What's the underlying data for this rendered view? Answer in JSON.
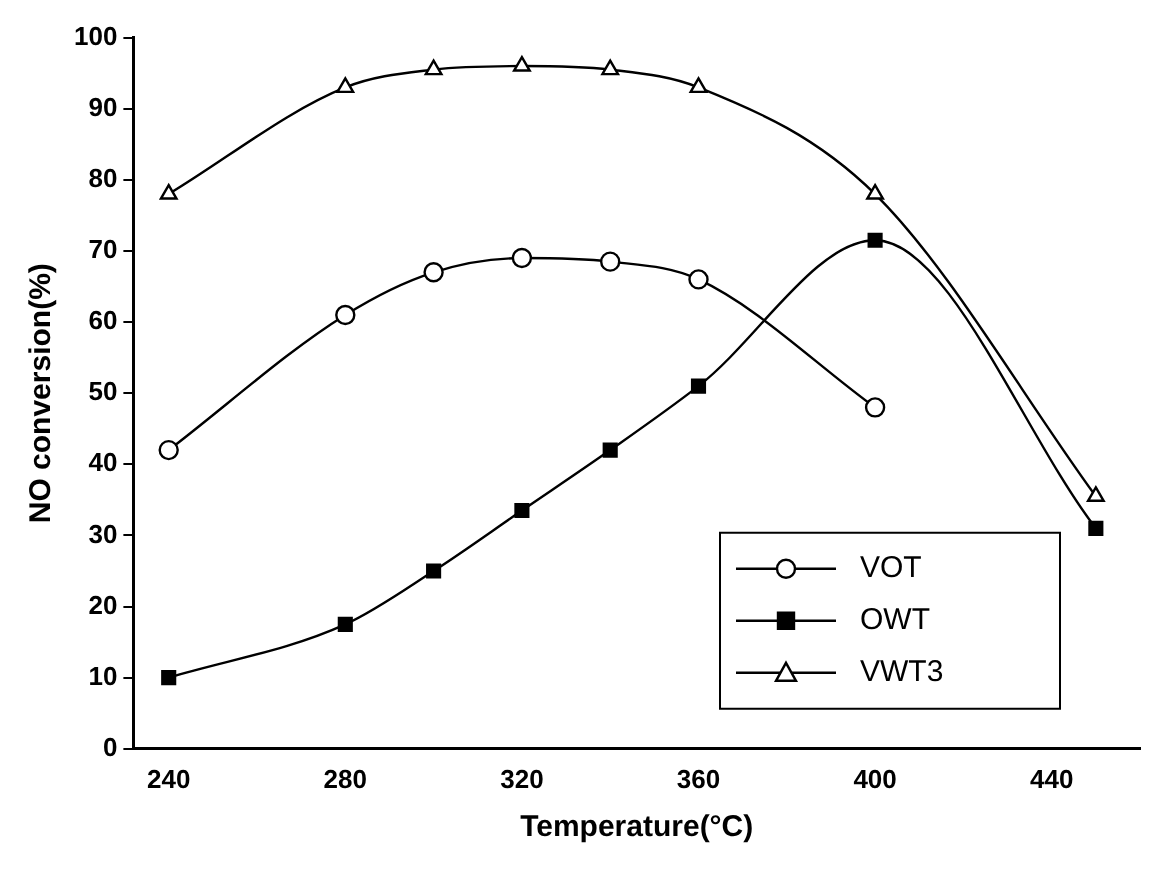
{
  "chart_data": {
    "type": "line",
    "xlabel": "Temperature(°C)",
    "ylabel": "NO conversion(%)",
    "xlim": [
      232,
      460
    ],
    "xticks": [
      240,
      280,
      320,
      360,
      400,
      440
    ],
    "ylim": [
      0,
      100
    ],
    "yticks": [
      0,
      10,
      20,
      30,
      40,
      50,
      60,
      70,
      80,
      90,
      100
    ],
    "grid": false,
    "legend": "bottom right",
    "series": [
      {
        "name": "VOT",
        "color": "#000000",
        "marker": "circle",
        "x": [
          240,
          280,
          300,
          320,
          340,
          360,
          400
        ],
        "values": [
          42,
          61,
          67,
          69,
          68.5,
          66,
          48
        ]
      },
      {
        "name": "OWT",
        "color": "#000000",
        "marker": "square",
        "x": [
          240,
          280,
          300,
          320,
          340,
          360,
          400,
          450
        ],
        "values": [
          10,
          17.5,
          25,
          33.5,
          42,
          51,
          71.5,
          31
        ]
      },
      {
        "name": "VWT3",
        "color": "#000000",
        "marker": "triangle",
        "x": [
          240,
          280,
          300,
          320,
          340,
          360,
          400,
          450
        ],
        "values": [
          78,
          93,
          95.5,
          96,
          95.5,
          93,
          78,
          35.5
        ]
      }
    ]
  }
}
